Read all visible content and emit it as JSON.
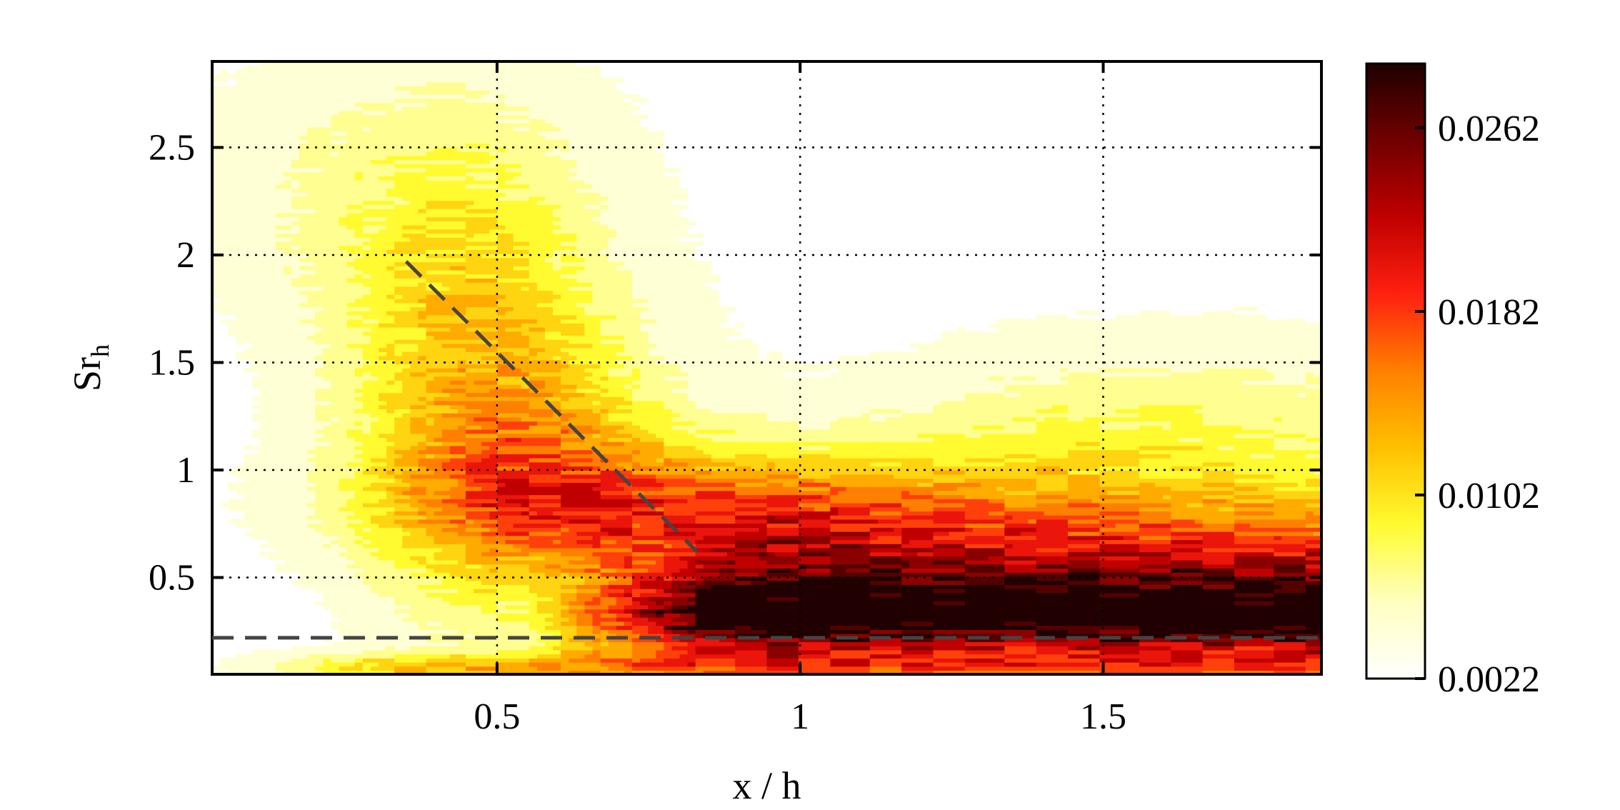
{
  "chart_data": {
    "type": "heatmap",
    "title": "",
    "xlabel": "x / h",
    "ylabel_main": "Sr",
    "ylabel_sub": "h",
    "xlim": [
      0.03,
      1.86
    ],
    "ylim": [
      0.05,
      2.9
    ],
    "xticks": [
      {
        "value": 0.5,
        "label": "0.5"
      },
      {
        "value": 1,
        "label": "1"
      },
      {
        "value": 1.5,
        "label": "1.5"
      }
    ],
    "yticks": [
      {
        "value": 0.5,
        "label": "0.5"
      },
      {
        "value": 1,
        "label": "1"
      },
      {
        "value": 1.5,
        "label": "1.5"
      },
      {
        "value": 2,
        "label": "2"
      },
      {
        "value": 2.5,
        "label": "2.5"
      }
    ],
    "grid": true,
    "colorbar": {
      "min": 0.0022,
      "max": 0.029,
      "ticks": [
        {
          "value": 0.0022,
          "label": "0.0022"
        },
        {
          "value": 0.0102,
          "label": "0.0102"
        },
        {
          "value": 0.0182,
          "label": "0.0182"
        },
        {
          "value": 0.0262,
          "label": "0.0262"
        }
      ],
      "colormap": [
        "#ffffff",
        "#ffffc0",
        "#fffb30",
        "#ffc000",
        "#ff8000",
        "#ff2010",
        "#c00000",
        "#700000",
        "#200000"
      ]
    },
    "annotations": [
      {
        "type": "dashed-line",
        "from": [
          0.35,
          1.97
        ],
        "to": [
          0.83,
          0.62
        ]
      },
      {
        "type": "dashed-line",
        "from": [
          0.03,
          0.22
        ],
        "to": [
          1.86,
          0.22
        ]
      }
    ]
  }
}
